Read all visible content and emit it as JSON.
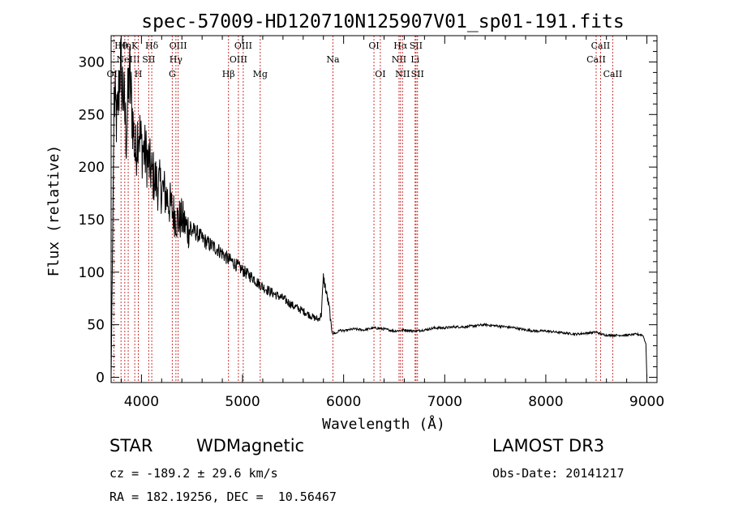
{
  "chart_data": {
    "type": "line",
    "title": "spec-57009-HD120710N125907V01_sp01-191.fits",
    "xlabel": "Wavelength (Å)",
    "ylabel": "Flux (relative)",
    "xlim": [
      3700,
      9100
    ],
    "ylim": [
      -5,
      325
    ],
    "xticks": [
      4000,
      5000,
      6000,
      7000,
      8000,
      9000
    ],
    "yticks": [
      0,
      50,
      100,
      150,
      200,
      250,
      300
    ],
    "series": [
      {
        "name": "spectrum",
        "x": [
          3700,
          3730,
          3760,
          3790,
          3820,
          3850,
          3880,
          3910,
          3940,
          3970,
          4000,
          4050,
          4100,
          4150,
          4200,
          4250,
          4300,
          4350,
          4400,
          4450,
          4500,
          4550,
          4600,
          4650,
          4700,
          4750,
          4800,
          4850,
          4900,
          4950,
          5000,
          5050,
          5100,
          5150,
          5200,
          5300,
          5400,
          5500,
          5600,
          5700,
          5750,
          5780,
          5800,
          5830,
          5860,
          5880,
          5900,
          5930,
          5960,
          6000,
          6100,
          6200,
          6300,
          6400,
          6500,
          6600,
          6700,
          6800,
          6900,
          7000,
          7100,
          7200,
          7300,
          7400,
          7500,
          7600,
          7700,
          7800,
          7900,
          8000,
          8100,
          8200,
          8300,
          8400,
          8500,
          8550,
          8600,
          8700,
          8800,
          8900,
          8960,
          8990,
          9000
        ],
        "y": [
          0,
          265,
          240,
          300,
          270,
          230,
          290,
          250,
          210,
          240,
          220,
          210,
          195,
          185,
          180,
          172,
          160,
          150,
          150,
          142,
          140,
          137,
          132,
          128,
          125,
          122,
          118,
          113,
          110,
          106,
          102,
          98,
          95,
          90,
          86,
          80,
          75,
          68,
          63,
          57,
          55,
          60,
          95,
          80,
          65,
          45,
          42,
          42,
          45,
          44,
          46,
          45,
          47,
          46,
          44,
          45,
          44,
          45,
          47,
          47,
          48,
          48,
          49,
          50,
          49,
          48,
          47,
          45,
          44,
          44,
          43,
          42,
          41,
          42,
          43,
          41,
          40,
          40,
          40,
          41,
          40,
          32,
          0
        ]
      }
    ],
    "lines": [
      {
        "name": "OII",
        "wave": 3727,
        "tier": 2
      },
      {
        "name": "Hθ",
        "wave": 3798,
        "tier": 0
      },
      {
        "name": "Hη",
        "wave": 3835,
        "tier": 0
      },
      {
        "name": "NeIII",
        "wave": 3869,
        "tier": 1
      },
      {
        "name": "K",
        "wave": 3934,
        "tier": 0
      },
      {
        "name": "H",
        "wave": 3969,
        "tier": 2
      },
      {
        "name": "SII",
        "wave": 4072,
        "tier": 1
      },
      {
        "name": "Hδ",
        "wave": 4102,
        "tier": 0
      },
      {
        "name": "G",
        "wave": 4305,
        "tier": 2
      },
      {
        "name": "Hγ",
        "wave": 4341,
        "tier": 1
      },
      {
        "name": "OIII",
        "wave": 4363,
        "tier": 0
      },
      {
        "name": "Hβ",
        "wave": 4861,
        "tier": 2
      },
      {
        "name": "OIII",
        "wave": 4959,
        "tier": 1
      },
      {
        "name": "OIII",
        "wave": 5007,
        "tier": 0
      },
      {
        "name": "Mg",
        "wave": 5175,
        "tier": 2
      },
      {
        "name": "Na",
        "wave": 5894,
        "tier": 1
      },
      {
        "name": "OI",
        "wave": 6300,
        "tier": 0
      },
      {
        "name": "OI",
        "wave": 6363,
        "tier": 2
      },
      {
        "name": "NII",
        "wave": 6548,
        "tier": 1
      },
      {
        "name": "Hα",
        "wave": 6563,
        "tier": 0
      },
      {
        "name": "NII",
        "wave": 6583,
        "tier": 2
      },
      {
        "name": "Li",
        "wave": 6707,
        "tier": 1
      },
      {
        "name": "SII",
        "wave": 6716,
        "tier": 0
      },
      {
        "name": "SII",
        "wave": 6731,
        "tier": 2
      },
      {
        "name": "CaII",
        "wave": 8498,
        "tier": 1
      },
      {
        "name": "CaII",
        "wave": 8542,
        "tier": 0
      },
      {
        "name": "CaII",
        "wave": 8662,
        "tier": 2
      }
    ]
  },
  "info": {
    "class_label": "STAR",
    "subclass": "WDMagnetic",
    "survey": "LAMOST DR3",
    "cz_text": "cz = -189.2 ± 29.6 km/s",
    "obs_date_text": "Obs-Date: 20141217",
    "coords_text": "RA = 182.19256, DEC =  10.56467"
  },
  "colors": {
    "spectrum": "#000000",
    "line_marker": "#cc3333",
    "axes": "#000000"
  }
}
